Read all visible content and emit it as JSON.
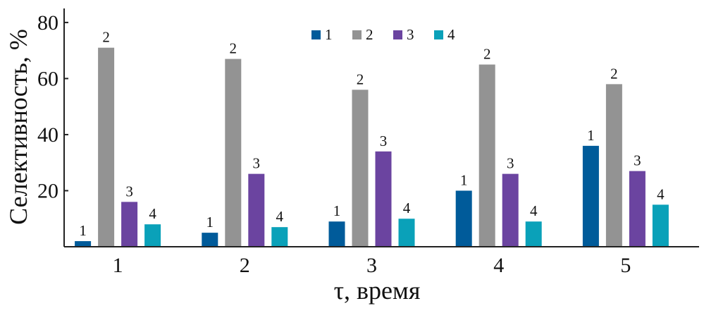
{
  "chart_data": {
    "type": "bar",
    "xlabel": "τ, время",
    "ylabel": "Селективность, %",
    "ylim": [
      0,
      85
    ],
    "yticks": [
      20,
      40,
      60,
      80
    ],
    "grid": false,
    "legend_position": "top-center",
    "categories": [
      "1",
      "2",
      "3",
      "4",
      "5"
    ],
    "series": [
      {
        "name": "1",
        "color": "#005b9a",
        "values": [
          2,
          5,
          9,
          20,
          36
        ]
      },
      {
        "name": "2",
        "color": "#939393",
        "values": [
          71,
          67,
          56,
          65,
          58
        ]
      },
      {
        "name": "3",
        "color": "#6b44a0",
        "values": [
          16,
          26,
          34,
          26,
          27
        ]
      },
      {
        "name": "4",
        "color": "#0aa1b9",
        "values": [
          8,
          7,
          10,
          9,
          15
        ]
      }
    ]
  }
}
